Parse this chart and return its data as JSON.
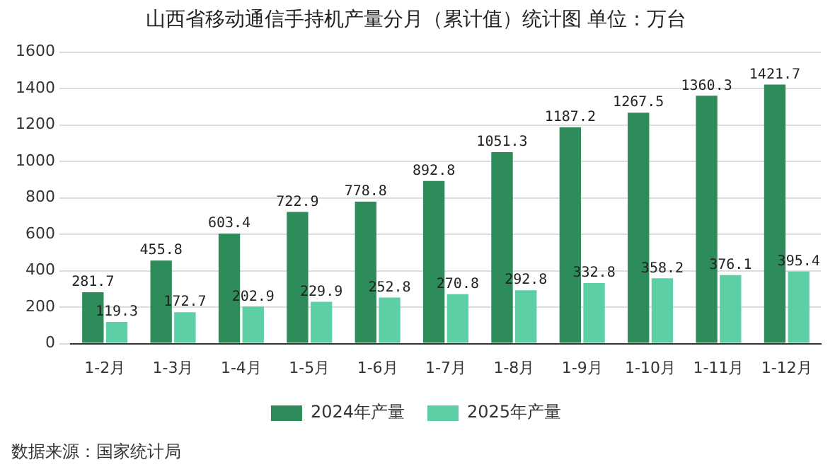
{
  "chart_data": {
    "type": "bar",
    "title": "山西省移动通信手持机产量分月（累计值）统计图 单位：万台",
    "categories": [
      "1-2月",
      "1-3月",
      "1-4月",
      "1-5月",
      "1-6月",
      "1-7月",
      "1-8月",
      "1-9月",
      "1-10月",
      "1-11月",
      "1-12月"
    ],
    "series": [
      {
        "name": "2024年产量",
        "color": "#2e8b5a",
        "values": [
          281.7,
          455.8,
          603.4,
          722.9,
          778.8,
          892.8,
          1051.3,
          1187.2,
          1267.5,
          1360.3,
          1421.7
        ]
      },
      {
        "name": "2025年产量",
        "color": "#5ccfa5",
        "values": [
          119.3,
          172.7,
          202.9,
          229.9,
          252.8,
          270.8,
          292.8,
          332.8,
          358.2,
          376.1,
          395.4
        ]
      }
    ],
    "ylim": [
      0,
      1600
    ],
    "yticks": [
      0,
      200,
      400,
      600,
      800,
      1000,
      1200,
      1400,
      1600
    ],
    "grid": "y",
    "legend": "bottom",
    "data_labels": true,
    "annotations": [
      "数据来源：国家统计局"
    ]
  }
}
